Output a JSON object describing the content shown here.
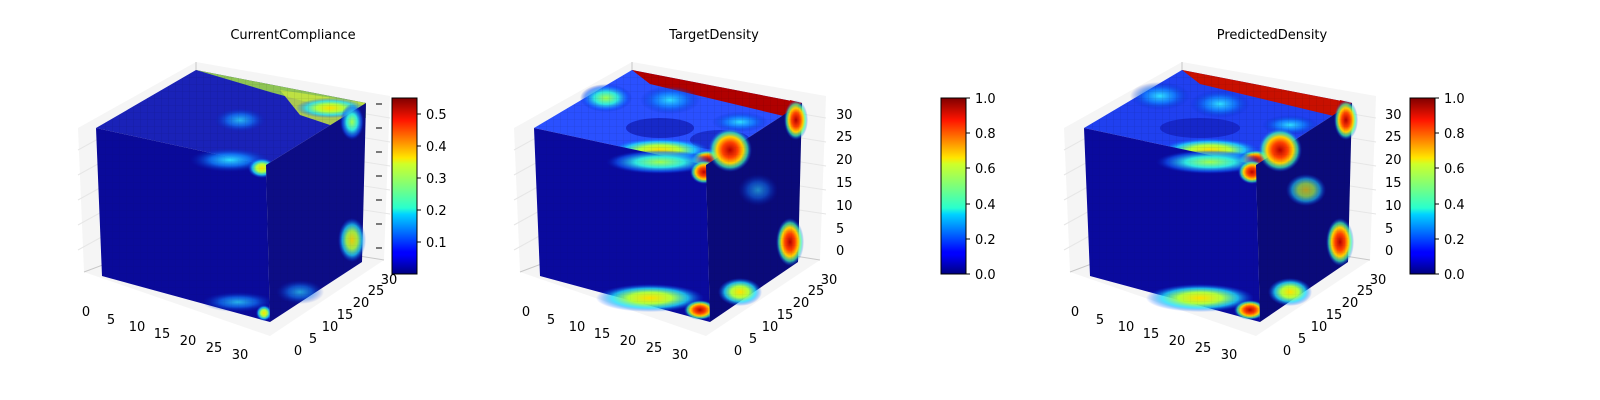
{
  "chart_data": [
    {
      "type": "voxel-3d",
      "title": "CurrentCompliance",
      "x_ticks": [
        "0",
        "5",
        "10",
        "15",
        "20",
        "25",
        "30"
      ],
      "y_ticks": [
        "0",
        "5",
        "10",
        "15",
        "20",
        "25",
        "30"
      ],
      "z_ticks": [
        "0",
        "5",
        "10",
        "15",
        "20",
        "25",
        "30"
      ],
      "z_ticks_labeled": false,
      "colormap": "jet",
      "colorbar": {
        "min": 0.0,
        "max": 0.55,
        "ticks": [
          "0.1",
          "0.2",
          "0.3",
          "0.4",
          "0.5"
        ],
        "tick_values": [
          0.1,
          0.2,
          0.3,
          0.4,
          0.5
        ]
      },
      "grid": true
    },
    {
      "type": "voxel-3d",
      "title": "TargetDensity",
      "x_ticks": [
        "0",
        "5",
        "10",
        "15",
        "20",
        "25",
        "30"
      ],
      "y_ticks": [
        "0",
        "5",
        "10",
        "15",
        "20",
        "25",
        "30"
      ],
      "z_ticks": [
        "0",
        "5",
        "10",
        "15",
        "20",
        "25",
        "30"
      ],
      "z_ticks_labeled": true,
      "colormap": "jet",
      "colorbar": {
        "min": 0.0,
        "max": 1.0,
        "ticks": [
          "0.0",
          "0.2",
          "0.4",
          "0.6",
          "0.8",
          "1.0"
        ],
        "tick_values": [
          0.0,
          0.2,
          0.4,
          0.6,
          0.8,
          1.0
        ]
      },
      "grid": true
    },
    {
      "type": "voxel-3d",
      "title": "PredictedDensity",
      "x_ticks": [
        "0",
        "5",
        "10",
        "15",
        "20",
        "25",
        "30"
      ],
      "y_ticks": [
        "0",
        "5",
        "10",
        "15",
        "20",
        "25",
        "30"
      ],
      "z_ticks": [
        "0",
        "5",
        "10",
        "15",
        "20",
        "25",
        "30"
      ],
      "z_ticks_labeled": true,
      "colormap": "jet",
      "colorbar": {
        "min": 0.0,
        "max": 1.0,
        "ticks": [
          "0.0",
          "0.2",
          "0.4",
          "0.6",
          "0.8",
          "1.0"
        ],
        "tick_values": [
          0.0,
          0.2,
          0.4,
          0.6,
          0.8,
          1.0
        ]
      },
      "grid": true
    }
  ]
}
